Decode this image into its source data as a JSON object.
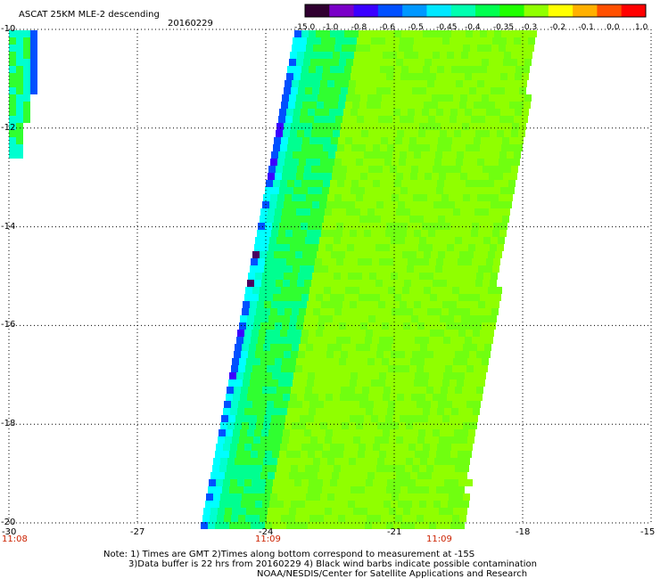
{
  "header": {
    "title": "ASCAT 25KM MLE-2 descending",
    "date": "20160229"
  },
  "colorbar": {
    "labels": [
      "-15.0",
      "-1.0",
      "-0.8",
      "-0.6",
      "-0.5",
      "-0.45",
      "-0.4",
      "-0.35",
      "-0.3",
      "-0.2",
      "-0.1",
      "0.0",
      "1.0"
    ],
    "colors": [
      "#300030",
      "#7a00c8",
      "#3a00ff",
      "#0050ff",
      "#0098ff",
      "#00e8ff",
      "#00ffb0",
      "#00ff50",
      "#20ff00",
      "#90ff00",
      "#ffff00",
      "#ffb000",
      "#ff5000",
      "#ff0000"
    ]
  },
  "map": {
    "lon_range": [
      -30,
      -15
    ],
    "lat_range": [
      -20,
      -10
    ],
    "lat_labels": [
      "-10",
      "-12",
      "-14",
      "-16",
      "-18",
      "-20"
    ],
    "lon_labels": [
      "-30",
      "-27",
      "-24",
      "-21",
      "-18",
      "-15"
    ],
    "time_labels": [
      {
        "lon": -30,
        "text": "11:08"
      },
      {
        "lon": -24,
        "text": "11:09"
      },
      {
        "lon": -20,
        "text": "11:09"
      }
    ]
  },
  "notes": [
    "Note: 1) Times are GMT 2)Times along bottom correspond to measurement at -15S",
    "3)Data buffer is 22 hrs from 20160229 4) Black wind barbs indicate possible contamination",
    "NOAA/NESDIS/Center for Satellite Applications and Research"
  ]
}
